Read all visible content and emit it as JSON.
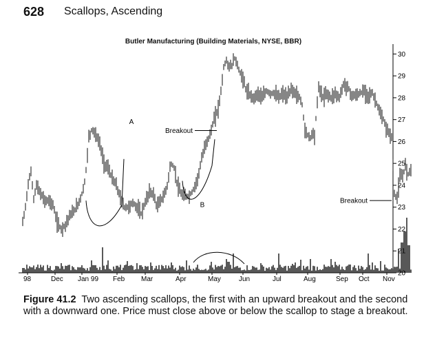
{
  "page_number": "628",
  "running_head": "Scallops, Ascending",
  "figure_label": "Figure 41.2",
  "caption": "Two ascending scallops, the first with an upward breakout and the second with a downward one. Price must close above or below the scallop to stage a breakout.",
  "chart_data": {
    "type": "bar",
    "subtype": "ohlc-with-volume",
    "title": "Butler Manufacturing (Building Materials, NYSE, BBR)",
    "x_labels": [
      "98",
      "Dec",
      "Jan 99",
      "Feb",
      "Mar",
      "Apr",
      "May",
      "Jun",
      "Jul",
      "Aug",
      "Sep",
      "Oct",
      "Nov"
    ],
    "y_axis_side": "right",
    "y_ticks": [
      20,
      21,
      22,
      23,
      24,
      25,
      26,
      27,
      28,
      29,
      30
    ],
    "ylim": [
      19.9,
      30.1
    ],
    "anchors": [
      [
        0,
        22.3
      ],
      [
        4,
        23.0
      ],
      [
        8,
        24.1
      ],
      [
        12,
        24.6
      ],
      [
        16,
        23.4
      ],
      [
        20,
        24.0
      ],
      [
        26,
        23.6
      ],
      [
        32,
        23.3
      ],
      [
        38,
        23.3
      ],
      [
        44,
        23.1
      ],
      [
        50,
        22.3
      ],
      [
        56,
        22.0
      ],
      [
        62,
        22.2
      ],
      [
        68,
        22.6
      ],
      [
        74,
        22.8
      ],
      [
        80,
        23.1
      ],
      [
        86,
        23.6
      ],
      [
        91,
        24.3
      ],
      [
        96,
        26.2
      ],
      [
        101,
        26.6
      ],
      [
        106,
        26.3
      ],
      [
        112,
        25.9
      ],
      [
        118,
        25.0
      ],
      [
        124,
        24.8
      ],
      [
        130,
        24.3
      ],
      [
        136,
        24.0
      ],
      [
        142,
        23.4
      ],
      [
        148,
        23.0
      ],
      [
        154,
        23.0
      ],
      [
        160,
        23.2
      ],
      [
        166,
        23.0
      ],
      [
        172,
        22.7
      ],
      [
        178,
        23.2
      ],
      [
        184,
        23.7
      ],
      [
        190,
        23.6
      ],
      [
        195,
        23.0
      ],
      [
        200,
        23.3
      ],
      [
        205,
        23.5
      ],
      [
        210,
        24.0
      ],
      [
        215,
        25.0
      ],
      [
        220,
        24.8
      ],
      [
        225,
        24.0
      ],
      [
        230,
        23.6
      ],
      [
        236,
        23.5
      ],
      [
        242,
        23.5
      ],
      [
        248,
        23.8
      ],
      [
        254,
        24.3
      ],
      [
        260,
        25.2
      ],
      [
        266,
        25.9
      ],
      [
        272,
        26.3
      ],
      [
        278,
        27.0
      ],
      [
        284,
        27.5
      ],
      [
        288,
        28.3
      ],
      [
        292,
        29.4
      ],
      [
        296,
        29.7
      ],
      [
        300,
        29.4
      ],
      [
        304,
        29.5
      ],
      [
        308,
        29.8
      ],
      [
        312,
        29.5
      ],
      [
        316,
        29.1
      ],
      [
        320,
        28.9
      ],
      [
        324,
        28.4
      ],
      [
        330,
        28.1
      ],
      [
        336,
        28.0
      ],
      [
        342,
        28.2
      ],
      [
        348,
        28.0
      ],
      [
        354,
        28.3
      ],
      [
        360,
        28.2
      ],
      [
        366,
        28.2
      ],
      [
        372,
        28.0
      ],
      [
        378,
        28.2
      ],
      [
        384,
        28.0
      ],
      [
        390,
        28.4
      ],
      [
        396,
        28.2
      ],
      [
        402,
        28.0
      ],
      [
        406,
        27.7
      ],
      [
        410,
        26.5
      ],
      [
        414,
        26.3
      ],
      [
        418,
        26.2
      ],
      [
        421,
        26.4
      ],
      [
        424,
        26.3
      ],
      [
        430,
        28.5
      ],
      [
        436,
        28.0
      ],
      [
        442,
        28.2
      ],
      [
        448,
        28.0
      ],
      [
        454,
        28.2
      ],
      [
        460,
        28.0
      ],
      [
        466,
        28.6
      ],
      [
        472,
        28.5
      ],
      [
        478,
        28.1
      ],
      [
        484,
        28.1
      ],
      [
        490,
        28.2
      ],
      [
        496,
        28.3
      ],
      [
        502,
        28.1
      ],
      [
        508,
        28.2
      ],
      [
        512,
        27.9
      ],
      [
        516,
        27.6
      ],
      [
        520,
        27.2
      ],
      [
        524,
        27.0
      ],
      [
        528,
        26.6
      ],
      [
        532,
        26.4
      ],
      [
        536,
        26.2
      ],
      [
        540,
        23.6
      ],
      [
        544,
        23.4
      ],
      [
        548,
        24.4
      ],
      [
        552,
        24.4
      ],
      [
        556,
        24.9
      ],
      [
        560,
        24.5
      ],
      [
        564,
        24.8
      ]
    ],
    "scallop_curves": [
      [
        [
          92,
          23.3
        ],
        [
          95,
          21.9
        ],
        [
          120,
          21.7
        ],
        [
          144,
          23.1
        ],
        [
          147,
          25.2
        ]
      ],
      [
        [
          232,
          24.2
        ],
        [
          235,
          22.9
        ],
        [
          258,
          23.1
        ],
        [
          275,
          24.9
        ],
        [
          279,
          26.1
        ]
      ]
    ],
    "annotations": [
      {
        "text": "A",
        "x": 158,
        "y": 26.8,
        "kind": "peak"
      },
      {
        "text": "B",
        "x": 261,
        "y": 23.0,
        "kind": "low"
      },
      {
        "text": "Breakout",
        "x": 282,
        "y": 26.5,
        "kind": "breakout",
        "side": "left"
      },
      {
        "text": "Breakout",
        "x": 536,
        "y": 23.3,
        "kind": "breakout",
        "side": "left"
      }
    ],
    "volume": {
      "label": "",
      "spikes": [
        [
          1,
          7
        ],
        [
          12,
          8
        ],
        [
          38,
          7
        ],
        [
          56,
          14
        ],
        [
          64,
          10
        ],
        [
          74,
          8
        ],
        [
          100,
          18
        ],
        [
          105,
          11
        ],
        [
          116,
          37
        ],
        [
          124,
          18
        ],
        [
          152,
          17
        ],
        [
          154,
          10
        ],
        [
          166,
          14
        ],
        [
          172,
          11
        ],
        [
          186,
          15
        ],
        [
          208,
          11
        ],
        [
          216,
          15
        ],
        [
          238,
          18
        ],
        [
          274,
          16
        ],
        [
          296,
          20
        ],
        [
          299,
          16
        ],
        [
          306,
          28
        ],
        [
          346,
          14
        ],
        [
          372,
          28
        ],
        [
          392,
          13
        ],
        [
          396,
          15
        ],
        [
          404,
          19
        ],
        [
          418,
          20
        ],
        [
          448,
          20
        ],
        [
          454,
          16
        ],
        [
          475,
          12
        ],
        [
          502,
          28
        ],
        [
          508,
          15
        ],
        [
          520,
          17
        ],
        [
          546,
          35
        ],
        [
          551,
          44
        ],
        [
          555,
          60
        ],
        [
          558,
          80
        ],
        [
          561,
          40
        ]
      ],
      "hump_span": [
        248,
        322
      ]
    }
  }
}
